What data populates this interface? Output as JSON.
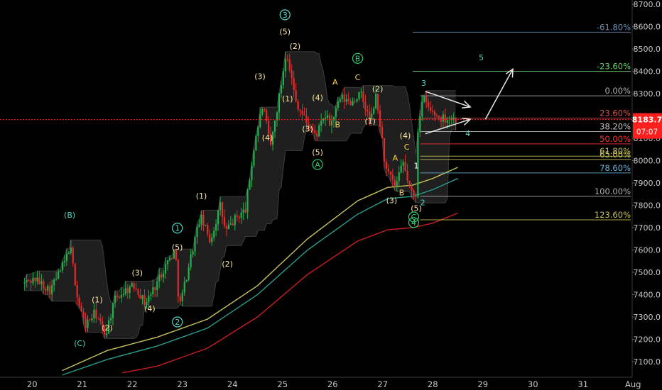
{
  "chart_data": {
    "type": "candlestick",
    "x_axis": {
      "tick_labels": [
        "20",
        "21",
        "22",
        "23",
        "24",
        "25",
        "26",
        "27",
        "28",
        "29",
        "30",
        "31",
        "Aug"
      ]
    },
    "y_axis": {
      "position": "right",
      "range": [
        7050,
        8700
      ],
      "tick_values": [
        7100,
        7200,
        7300,
        7400,
        7500,
        7600,
        7700,
        7800,
        7900,
        8000,
        8100,
        8200,
        8300,
        8400,
        8500,
        8600,
        8700
      ],
      "tick_labels": [
        "7100.0",
        "7200.0",
        "7300.0",
        "7400.0",
        "7500.0",
        "7600.0",
        "7700.0",
        "7800.0",
        "7900.0",
        "8000.0",
        "8100.0",
        "8200.0",
        "8300.0",
        "8400.0",
        "8500.0",
        "8600.0",
        "8700.0"
      ]
    },
    "grid": false,
    "last_price": {
      "label": "8183.7",
      "value": 8183.7,
      "countdown": "07:07",
      "color": "#ff1e1e"
    },
    "price_anchors": [
      [
        19.85,
        7450
      ],
      [
        20.1,
        7470
      ],
      [
        20.4,
        7420
      ],
      [
        20.7,
        7550
      ],
      [
        20.8,
        7620
      ],
      [
        20.95,
        7380
      ],
      [
        21.1,
        7260
      ],
      [
        21.3,
        7320
      ],
      [
        21.5,
        7220
      ],
      [
        21.7,
        7380
      ],
      [
        21.9,
        7420
      ],
      [
        22.1,
        7440
      ],
      [
        22.3,
        7360
      ],
      [
        22.5,
        7440
      ],
      [
        22.7,
        7530
      ],
      [
        22.9,
        7600
      ],
      [
        22.98,
        7340
      ],
      [
        23.2,
        7560
      ],
      [
        23.4,
        7750
      ],
      [
        23.6,
        7640
      ],
      [
        23.8,
        7800
      ],
      [
        23.9,
        7680
      ],
      [
        24.1,
        7740
      ],
      [
        24.3,
        7780
      ],
      [
        24.5,
        8100
      ],
      [
        24.65,
        8250
      ],
      [
        24.8,
        8060
      ],
      [
        25.0,
        8320
      ],
      [
        25.12,
        8500
      ],
      [
        25.3,
        8270
      ],
      [
        25.5,
        8180
      ],
      [
        25.7,
        8110
      ],
      [
        25.9,
        8200
      ],
      [
        26.0,
        8160
      ],
      [
        26.2,
        8280
      ],
      [
        26.4,
        8260
      ],
      [
        26.6,
        8300
      ],
      [
        26.8,
        8170
      ],
      [
        26.9,
        8290
      ],
      [
        27.0,
        8150
      ],
      [
        27.1,
        7960
      ],
      [
        27.3,
        7880
      ],
      [
        27.45,
        7990
      ],
      [
        27.6,
        7860
      ],
      [
        27.7,
        7820
      ],
      [
        27.75,
        8170
      ],
      [
        27.85,
        8280
      ],
      [
        28.0,
        8220
      ],
      [
        28.2,
        8190
      ],
      [
        28.4,
        8190
      ],
      [
        28.5,
        8183.7
      ]
    ],
    "moving_averages": [
      {
        "color": "#c8c25a",
        "points": [
          [
            20.6,
            7060
          ],
          [
            21.5,
            7150
          ],
          [
            22.5,
            7210
          ],
          [
            23.5,
            7290
          ],
          [
            24.5,
            7440
          ],
          [
            25.5,
            7650
          ],
          [
            26.5,
            7820
          ],
          [
            27.1,
            7880
          ],
          [
            27.6,
            7890
          ],
          [
            28.0,
            7920
          ],
          [
            28.5,
            7970
          ]
        ]
      },
      {
        "color": "#2a9d8f",
        "points": [
          [
            20.6,
            7040
          ],
          [
            21.5,
            7110
          ],
          [
            22.5,
            7170
          ],
          [
            23.5,
            7250
          ],
          [
            24.5,
            7400
          ],
          [
            25.5,
            7600
          ],
          [
            26.5,
            7760
          ],
          [
            27.1,
            7830
          ],
          [
            27.6,
            7840
          ],
          [
            28.0,
            7870
          ],
          [
            28.5,
            7920
          ]
        ]
      },
      {
        "color": "#c81e1e",
        "points": [
          [
            21.8,
            7050
          ],
          [
            22.5,
            7080
          ],
          [
            23.5,
            7160
          ],
          [
            24.5,
            7300
          ],
          [
            25.5,
            7490
          ],
          [
            26.5,
            7640
          ],
          [
            27.1,
            7690
          ],
          [
            27.6,
            7700
          ],
          [
            28.0,
            7720
          ],
          [
            28.5,
            7765
          ]
        ]
      }
    ],
    "fibonacci": [
      {
        "label": "-61.80%",
        "value": 8575,
        "color": "#6a8fb5",
        "x_start": 27.6
      },
      {
        "label": "-23.60%",
        "value": 8400,
        "color": "#6ad26a",
        "x_start": 27.6
      },
      {
        "label": "0.00%",
        "value": 8290,
        "color": "#b0b0b0",
        "x_start": 27.75
      },
      {
        "label": "23.60%",
        "value": 8190,
        "color": "#e05050",
        "x_start": 27.75
      },
      {
        "label": "38.20%",
        "value": 8130,
        "color": "#c0c0c0",
        "x_start": 27.75
      },
      {
        "label": "50.00%",
        "value": 8075,
        "color": "#ff3030",
        "x_start": 27.75
      },
      {
        "label": "61.80%",
        "value": 8020,
        "color": "#c8c25a",
        "x_start": 27.75
      },
      {
        "label": "65.00%",
        "value": 8005,
        "color": "#c8c25a",
        "x_start": 27.75
      },
      {
        "label": "78.60%",
        "value": 7945,
        "color": "#6ab4dc",
        "x_start": 27.75
      },
      {
        "label": "100.00%",
        "value": 7840,
        "color": "#b0b0b0",
        "x_start": 27.75
      },
      {
        "label": "123.60%",
        "value": 7735,
        "color": "#c8c25a",
        "x_start": 27.75
      }
    ],
    "wave_labels": [
      {
        "text": "(B)",
        "x": 20.75,
        "y": 7745,
        "color": "#4fd8c4",
        "circle": false
      },
      {
        "text": "(C)",
        "x": 20.95,
        "y": 7170,
        "color": "#4fd8c4",
        "circle": false
      },
      {
        "text": "(1)",
        "x": 21.3,
        "y": 7365,
        "color": "#ffe9a0",
        "circle": false
      },
      {
        "text": "(2)",
        "x": 21.5,
        "y": 7240,
        "color": "#ffe9a0",
        "circle": false
      },
      {
        "text": "(3)",
        "x": 22.1,
        "y": 7485,
        "color": "#ffe9a0",
        "circle": false
      },
      {
        "text": "(4)",
        "x": 22.35,
        "y": 7325,
        "color": "#ffe9a0",
        "circle": false
      },
      {
        "text": "(5)",
        "x": 22.9,
        "y": 7600,
        "color": "#ffe9a0",
        "circle": false
      },
      {
        "text": "1",
        "x": 22.9,
        "y": 7685,
        "color": "#4fd8c4",
        "circle": true
      },
      {
        "text": "2",
        "x": 22.9,
        "y": 7265,
        "color": "#4fd8c4",
        "circle": true
      },
      {
        "text": "(1)",
        "x": 23.38,
        "y": 7830,
        "color": "#ffe9a0",
        "circle": false
      },
      {
        "text": "(2)",
        "x": 23.9,
        "y": 7525,
        "color": "#ffe9a0",
        "circle": false
      },
      {
        "text": "(3)",
        "x": 24.55,
        "y": 8365,
        "color": "#ffe9a0",
        "circle": false
      },
      {
        "text": "(4)",
        "x": 24.7,
        "y": 8090,
        "color": "#ffe9a0",
        "circle": false
      },
      {
        "text": "3",
        "x": 25.05,
        "y": 8640,
        "color": "#4fd8c4",
        "circle": true
      },
      {
        "text": "(5)",
        "x": 25.05,
        "y": 8565,
        "color": "#ffe9a0",
        "circle": false
      },
      {
        "text": "(2)",
        "x": 25.25,
        "y": 8500,
        "color": "#ffe9a0",
        "circle": false
      },
      {
        "text": "(1)",
        "x": 25.1,
        "y": 8265,
        "color": "#ffe9a0",
        "circle": false
      },
      {
        "text": "(4)",
        "x": 25.7,
        "y": 8270,
        "color": "#ffe9a0",
        "circle": false
      },
      {
        "text": "(3)",
        "x": 25.5,
        "y": 8130,
        "color": "#ffe9a0",
        "circle": false
      },
      {
        "text": "(5)",
        "x": 25.7,
        "y": 8025,
        "color": "#ffe9a0",
        "circle": false
      },
      {
        "text": "A",
        "x": 25.7,
        "y": 7970,
        "color": "#2ecc71",
        "circle": true
      },
      {
        "text": "A",
        "x": 26.05,
        "y": 8340,
        "color": "#ffd24a",
        "circle": false
      },
      {
        "text": "B",
        "x": 26.1,
        "y": 8150,
        "color": "#ffd24a",
        "circle": false
      },
      {
        "text": "B",
        "x": 26.5,
        "y": 8445,
        "color": "#2ecc71",
        "circle": true
      },
      {
        "text": "C",
        "x": 26.5,
        "y": 8360,
        "color": "#ffd24a",
        "circle": false
      },
      {
        "text": "(2)",
        "x": 26.9,
        "y": 8310,
        "color": "#ffe9a0",
        "circle": false
      },
      {
        "text": "(1)",
        "x": 26.75,
        "y": 8165,
        "color": "#ffe9a0",
        "circle": false
      },
      {
        "text": "(4)",
        "x": 27.45,
        "y": 8100,
        "color": "#ffe9a0",
        "circle": false
      },
      {
        "text": "C",
        "x": 27.48,
        "y": 8050,
        "color": "#ffd24a",
        "circle": false
      },
      {
        "text": "A",
        "x": 27.25,
        "y": 8000,
        "color": "#ffd24a",
        "circle": false
      },
      {
        "text": "B",
        "x": 27.38,
        "y": 7845,
        "color": "#ffd24a",
        "circle": false
      },
      {
        "text": "(3)",
        "x": 27.18,
        "y": 7810,
        "color": "#ffe9a0",
        "circle": false
      },
      {
        "text": "1",
        "x": 27.67,
        "y": 7965,
        "color": "#ffffff",
        "circle": false
      },
      {
        "text": "(5)",
        "x": 27.67,
        "y": 7775,
        "color": "#ffe9a0",
        "circle": false
      },
      {
        "text": "2",
        "x": 27.8,
        "y": 7800,
        "color": "#4fd8c4",
        "circle": false
      },
      {
        "text": "C",
        "x": 27.62,
        "y": 7735,
        "color": "#2ecc71",
        "circle": true
      },
      {
        "text": "4",
        "x": 27.62,
        "y": 7710,
        "color": "#2ecc71",
        "circle": true
      },
      {
        "text": "3",
        "x": 27.82,
        "y": 8335,
        "color": "#4fd8c4",
        "circle": false
      },
      {
        "text": "4",
        "x": 28.7,
        "y": 8110,
        "color": "#4fd8c4",
        "circle": false
      },
      {
        "text": "5",
        "x": 28.97,
        "y": 8450,
        "color": "#4fd8c4",
        "circle": false
      }
    ],
    "projection_arrows": [
      {
        "from": [
          27.85,
          8310
        ],
        "to": [
          28.75,
          8240
        ],
        "color": "#e8e8e8"
      },
      {
        "from": [
          27.85,
          8120
        ],
        "to": [
          28.75,
          8185
        ],
        "color": "#e8e8e8"
      },
      {
        "from": [
          29.05,
          8185
        ],
        "to": [
          29.6,
          8410
        ],
        "color": "#e8e8e8"
      }
    ]
  }
}
